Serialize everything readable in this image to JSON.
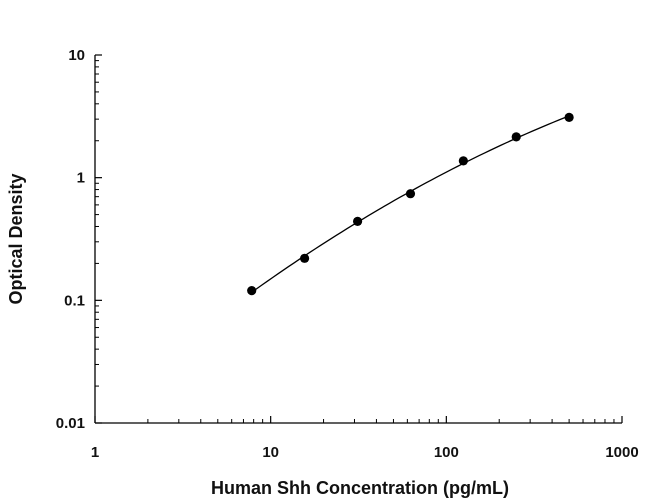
{
  "chart_data": {
    "type": "scatter",
    "xlabel": "Human Shh Concentration (pg/mL)",
    "ylabel": "Optical Density",
    "x_scale": "log",
    "y_scale": "log",
    "xlim": [
      1,
      1000
    ],
    "ylim": [
      0.01,
      10
    ],
    "x_ticks": [
      1,
      10,
      100,
      1000
    ],
    "x_tick_labels": [
      "1",
      "10",
      "100",
      "1000"
    ],
    "y_ticks": [
      0.01,
      0.1,
      1,
      10
    ],
    "y_tick_labels": [
      "0.01",
      "0.1",
      "1",
      "10"
    ],
    "grid": false,
    "fit_line": true,
    "series": [
      {
        "x": [
          7.8,
          15.6,
          31.25,
          62.5,
          125,
          250,
          500
        ],
        "y": [
          0.12,
          0.22,
          0.44,
          0.74,
          1.37,
          2.15,
          3.1
        ],
        "color": "#000000"
      }
    ]
  }
}
